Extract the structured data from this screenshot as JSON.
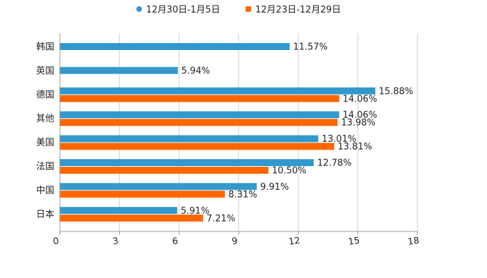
{
  "chart_data": {
    "type": "bar",
    "orientation": "horizontal",
    "categories": [
      "韩国",
      "英国",
      "德国",
      "其他",
      "美国",
      "法国",
      "中国",
      "日本"
    ],
    "series": [
      {
        "name": "12月30日-1月5日",
        "color": "#3399cc",
        "values": [
          11.57,
          5.94,
          15.88,
          14.06,
          13.01,
          12.78,
          9.91,
          5.91
        ],
        "labels": [
          "11.57%",
          "5.94%",
          "15.88%",
          "14.06%",
          "13.01%",
          "12.78%",
          "9.91%",
          "5.91%"
        ]
      },
      {
        "name": "12月23日-12月29日",
        "color": "#ff6600",
        "values": [
          null,
          null,
          14.06,
          13.98,
          13.81,
          10.5,
          8.31,
          7.21
        ],
        "labels": [
          "",
          "",
          "14.06%",
          "13.98%",
          "13.81%",
          "10.50%",
          "8.31%",
          "7.21%"
        ]
      }
    ],
    "xlim": [
      0,
      18
    ],
    "x_ticks": [
      "0",
      "3",
      "6",
      "9",
      "12",
      "15",
      "18"
    ],
    "grid": true,
    "legend_position": "top-center"
  }
}
